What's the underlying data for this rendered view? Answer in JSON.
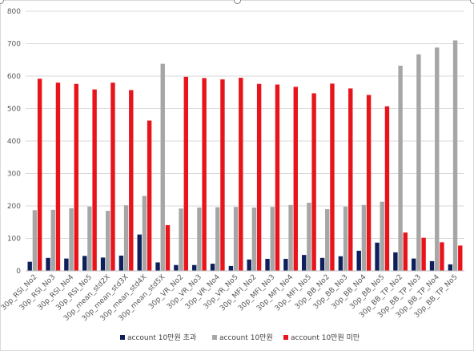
{
  "chart_data": {
    "type": "bar",
    "title": "",
    "xlabel": "",
    "ylabel": "",
    "ylim": [
      0,
      800
    ],
    "yticks": [
      0,
      100,
      200,
      300,
      400,
      500,
      600,
      700,
      800
    ],
    "grid": true,
    "legend_position": "bottom",
    "categories": [
      "30p_RSI_No2",
      "30p_RSI_No3",
      "30p_RSI_No4",
      "30p_RSI_No5",
      "30p_mean_std2X",
      "30p_mean_std3X",
      "30p_mean_std4X",
      "30p_mean_std5X",
      "30p_VR_No2",
      "30p_VR_No3",
      "30p_VR_No4",
      "30p_VR_No5",
      "30p_MFI_No2",
      "30p_MFI_No3",
      "30p_MFI_No4",
      "30p_MFI_No5",
      "30p_BB_No2",
      "30p_BB_No3",
      "30p_BB_No4",
      "30p_BB_No5",
      "30p_BB_TP_No2",
      "30p_BB_TP_No3",
      "30p_BB_TP_No4",
      "30p_BB_TP_No5"
    ],
    "series": [
      {
        "name": "account 10만원 초과",
        "color": "#0f1f5c",
        "values": [
          28,
          40,
          38,
          46,
          41,
          47,
          112,
          26,
          18,
          18,
          22,
          15,
          35,
          37,
          37,
          49,
          40,
          45,
          62,
          87,
          57,
          38,
          30,
          20
        ]
      },
      {
        "name": "account 10만원",
        "color": "#a6a6a6",
        "values": [
          187,
          188,
          193,
          198,
          185,
          202,
          231,
          638,
          192,
          195,
          196,
          197,
          195,
          197,
          203,
          210,
          190,
          198,
          203,
          213,
          632,
          667,
          688,
          710
        ]
      },
      {
        "name": "account 10만원 미만",
        "color": "#e8141c",
        "values": [
          592,
          580,
          576,
          559,
          580,
          557,
          463,
          141,
          598,
          594,
          590,
          595,
          576,
          574,
          567,
          547,
          577,
          562,
          542,
          507,
          118,
          102,
          88,
          78
        ]
      }
    ]
  }
}
